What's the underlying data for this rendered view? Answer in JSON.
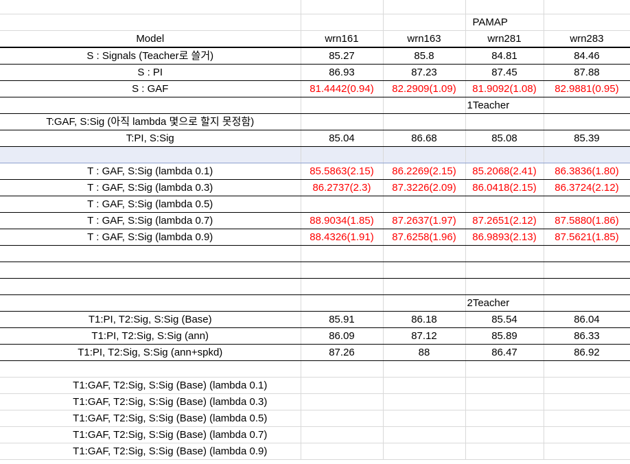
{
  "headers": {
    "dataset": "PAMAP",
    "model": "Model",
    "cols": [
      "wrn161",
      "wrn163",
      "wrn281",
      "wrn283"
    ]
  },
  "section1": {
    "rows": [
      {
        "label": "S : Signals (Teacher로 쓸거)",
        "values": [
          "85.27",
          "85.8",
          "84.81",
          "84.46"
        ]
      },
      {
        "label": "S : PI",
        "values": [
          "86.93",
          "87.23",
          "87.45",
          "87.88"
        ]
      },
      {
        "label": "S : GAF",
        "values": [
          "81.4442(0.94)",
          "82.2909(1.09)",
          "81.9092(1.08)",
          "82.9881(0.95)"
        ]
      }
    ]
  },
  "section2": {
    "title": "1Teacher",
    "note": "T:GAF, S:Sig (아직 lambda 몇으로 할지 못정함)",
    "pi_row": {
      "label": "T:PI, S:Sig",
      "values": [
        "85.04",
        "86.68",
        "85.08",
        "85.39"
      ]
    },
    "rows": [
      {
        "label": "T : GAF, S:Sig (lambda 0.1)",
        "values": [
          "85.5863(2.15)",
          "86.2269(2.15)",
          "85.2068(2.41)",
          "86.3836(1.80)"
        ]
      },
      {
        "label": "T : GAF, S:Sig (lambda 0.3)",
        "values": [
          "86.2737(2.3)",
          "87.3226(2.09)",
          "86.0418(2.15)",
          "86.3724(2.12)"
        ]
      },
      {
        "label": "T : GAF, S:Sig (lambda 0.5)",
        "values": [
          "",
          "",
          "",
          ""
        ]
      },
      {
        "label": "T : GAF, S:Sig (lambda 0.7)",
        "values": [
          "88.9034(1.85)",
          "87.2637(1.97)",
          "87.2651(2.12)",
          "87.5880(1.86)"
        ]
      },
      {
        "label": "T : GAF, S:Sig (lambda 0.9)",
        "values": [
          "88.4326(1.91)",
          "87.6258(1.96)",
          "86.9893(2.13)",
          "87.5621(1.85)"
        ]
      }
    ]
  },
  "section3": {
    "title": "2Teacher",
    "rows": [
      {
        "label": "T1:PI, T2:Sig, S:Sig (Base)",
        "values": [
          "85.91",
          "86.18",
          "85.54",
          "86.04"
        ]
      },
      {
        "label": "T1:PI, T2:Sig, S:Sig (ann)",
        "values": [
          "86.09",
          "87.12",
          "85.89",
          "86.33"
        ]
      },
      {
        "label": "T1:PI, T2:Sig, S:Sig (ann+spkd)",
        "values": [
          "87.26",
          "88",
          "86.47",
          "86.92"
        ]
      }
    ],
    "gaf_rows": [
      {
        "label": "T1:GAF, T2:Sig, S:Sig (Base) (lambda 0.1)"
      },
      {
        "label": "T1:GAF, T2:Sig, S:Sig (Base) (lambda 0.3)"
      },
      {
        "label": "T1:GAF, T2:Sig, S:Sig (Base) (lambda 0.5)"
      },
      {
        "label": "T1:GAF, T2:Sig, S:Sig (Base) (lambda 0.7)"
      },
      {
        "label": "T1:GAF, T2:Sig, S:Sig (Base) (lambda 0.9)"
      }
    ]
  },
  "colors": {
    "red_values": "#ff0000",
    "selected_row": "#e8ecf7",
    "gridline": "#d9d9d9"
  }
}
